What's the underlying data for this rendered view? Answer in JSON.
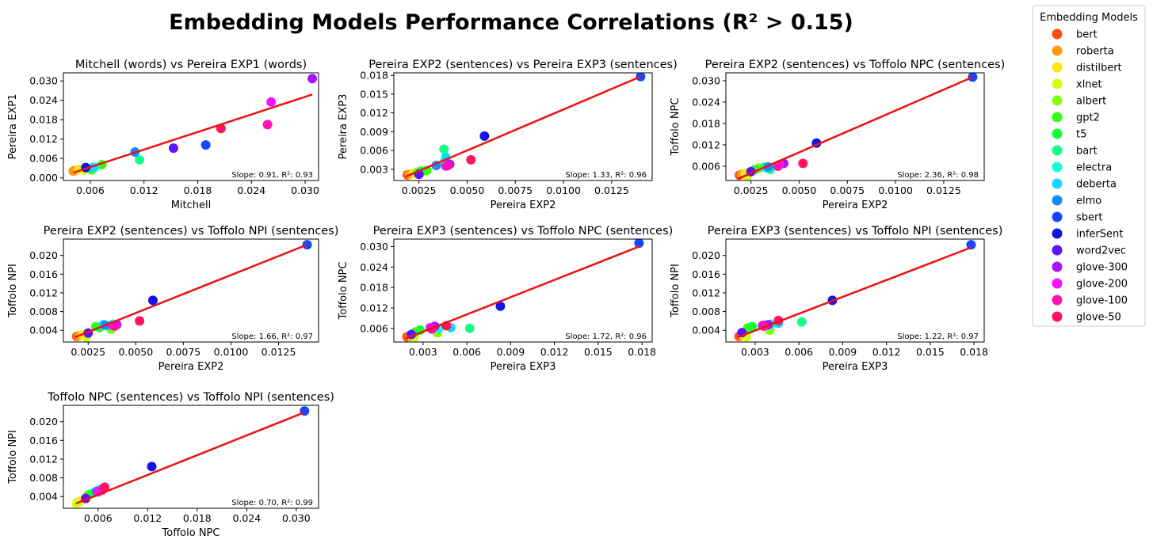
{
  "figure": {
    "title": "Embedding Models Performance Correlations (R² > 0.15)"
  },
  "legend": {
    "title": "Embedding Models",
    "placement": "outside-top-right",
    "entries": [
      {
        "name": "bert",
        "color": "#ff4d0f"
      },
      {
        "name": "roberta",
        "color": "#ff9a10"
      },
      {
        "name": "distilbert",
        "color": "#ffe512"
      },
      {
        "name": "xlnet",
        "color": "#d4ff14"
      },
      {
        "name": "albert",
        "color": "#7fff14"
      },
      {
        "name": "gpt2",
        "color": "#33ff14"
      },
      {
        "name": "t5",
        "color": "#14ff3a"
      },
      {
        "name": "bart",
        "color": "#14ff8a"
      },
      {
        "name": "electra",
        "color": "#14ffd8"
      },
      {
        "name": "deberta",
        "color": "#14d8ff"
      },
      {
        "name": "elmo",
        "color": "#148aff"
      },
      {
        "name": "sbert",
        "color": "#1447ff"
      },
      {
        "name": "inferSent",
        "color": "#1414e6"
      },
      {
        "name": "word2vec",
        "color": "#5c14ff"
      },
      {
        "name": "glove-300",
        "color": "#a814ff"
      },
      {
        "name": "glove-200",
        "color": "#f514ff"
      },
      {
        "name": "glove-100",
        "color": "#ff14b0"
      },
      {
        "name": "glove-50",
        "color": "#ff1460"
      }
    ]
  },
  "chart_data": [
    {
      "type": "scatter",
      "title": "Mitchell (words) vs Pereira EXP1 (words)",
      "xlabel": "Mitchell",
      "ylabel": "Pereira EXP1",
      "xlim": [
        0.003,
        0.0315
      ],
      "ylim": [
        -0.0008,
        0.0325
      ],
      "xticks": [
        "0.006",
        "0.012",
        "0.018",
        "0.024",
        "0.030"
      ],
      "yticks": [
        "0.000",
        "0.006",
        "0.012",
        "0.018",
        "0.024",
        "0.030"
      ],
      "fit": {
        "x": [
          0.0041,
          0.0308
        ],
        "y": [
          0.0016,
          0.0258
        ],
        "color": "#ee1111"
      },
      "stats": "Slope: 0.91, R²: 0.93",
      "points": [
        {
          "model": "bert",
          "x": 0.0042,
          "y": 0.0022
        },
        {
          "model": "roberta",
          "x": 0.0041,
          "y": 0.0021
        },
        {
          "model": "distilbert",
          "x": 0.0047,
          "y": 0.0026
        },
        {
          "model": "xlnet",
          "x": 0.0053,
          "y": 0.0024
        },
        {
          "model": "albert",
          "x": 0.0062,
          "y": 0.0024
        },
        {
          "model": "gpt2",
          "x": 0.0073,
          "y": 0.0041
        },
        {
          "model": "t5",
          "x": 0.006,
          "y": 0.0028
        },
        {
          "model": "bart",
          "x": 0.0115,
          "y": 0.0056
        },
        {
          "model": "electra",
          "x": 0.0065,
          "y": 0.0033
        },
        {
          "model": "deberta",
          "x": 0.0063,
          "y": 0.0032
        },
        {
          "model": "elmo",
          "x": 0.011,
          "y": 0.008
        },
        {
          "model": "sbert",
          "x": 0.0189,
          "y": 0.0102
        },
        {
          "model": "inferSent",
          "x": 0.0055,
          "y": 0.0032
        },
        {
          "model": "word2vec",
          "x": 0.0153,
          "y": 0.0092
        },
        {
          "model": "glove-300",
          "x": 0.0308,
          "y": 0.0307
        },
        {
          "model": "glove-200",
          "x": 0.0262,
          "y": 0.0235
        },
        {
          "model": "glove-100",
          "x": 0.0258,
          "y": 0.0165
        },
        {
          "model": "glove-50",
          "x": 0.0206,
          "y": 0.0153
        }
      ]
    },
    {
      "type": "scatter",
      "title": "Pereira EXP2 (sentences) vs Pereira EXP3 (sentences)",
      "xlabel": "Pereira EXP2",
      "ylabel": "Pereira EXP3",
      "xlim": [
        0.0012,
        0.0146
      ],
      "ylim": [
        0.0012,
        0.0184
      ],
      "xticks": [
        "0.0025",
        "0.0050",
        "0.0075",
        "0.0100",
        "0.0125"
      ],
      "yticks": [
        "0.003",
        "0.006",
        "0.009",
        "0.012",
        "0.015",
        "0.018"
      ],
      "fit": {
        "x": [
          0.0018,
          0.014
        ],
        "y": [
          0.0018,
          0.0178
        ],
        "color": "#ee1111"
      },
      "stats": "Slope: 1.33, R²: 0.96",
      "points": [
        {
          "model": "bert",
          "x": 0.0019,
          "y": 0.0021
        },
        {
          "model": "roberta",
          "x": 0.002,
          "y": 0.0022
        },
        {
          "model": "distilbert",
          "x": 0.0022,
          "y": 0.0023
        },
        {
          "model": "xlnet",
          "x": 0.0027,
          "y": 0.0026
        },
        {
          "model": "albert",
          "x": 0.0024,
          "y": 0.0025
        },
        {
          "model": "gpt2",
          "x": 0.0029,
          "y": 0.0028
        },
        {
          "model": "t5",
          "x": 0.0026,
          "y": 0.0027
        },
        {
          "model": "bart",
          "x": 0.0038,
          "y": 0.0062
        },
        {
          "model": "electra",
          "x": 0.0038,
          "y": 0.0041
        },
        {
          "model": "deberta",
          "x": 0.0039,
          "y": 0.0049
        },
        {
          "model": "elmo",
          "x": 0.0034,
          "y": 0.0036
        },
        {
          "model": "sbert",
          "x": 0.014,
          "y": 0.0178
        },
        {
          "model": "inferSent",
          "x": 0.0059,
          "y": 0.0083
        },
        {
          "model": "word2vec",
          "x": 0.0025,
          "y": 0.0022
        },
        {
          "model": "glove-300",
          "x": 0.0041,
          "y": 0.0038
        },
        {
          "model": "glove-200",
          "x": 0.0039,
          "y": 0.0035
        },
        {
          "model": "glove-100",
          "x": 0.004,
          "y": 0.0036
        },
        {
          "model": "glove-50",
          "x": 0.0052,
          "y": 0.0045
        }
      ]
    },
    {
      "type": "scatter",
      "title": "Pereira EXP2 (sentences) vs Toffolo NPC (sentences)",
      "xlabel": "Pereira EXP2",
      "ylabel": "Toffolo NPC",
      "xlim": [
        0.0012,
        0.0146
      ],
      "ylim": [
        0.002,
        0.0322
      ],
      "xticks": [
        "0.0025",
        "0.0050",
        "0.0075",
        "0.0100",
        "0.0125"
      ],
      "yticks": [
        "0.006",
        "0.012",
        "0.018",
        "0.024",
        "0.030"
      ],
      "fit": {
        "x": [
          0.0018,
          0.014
        ],
        "y": [
          0.0024,
          0.031
        ],
        "color": "#ee1111"
      },
      "stats": "Slope: 2.36, R²: 0.98",
      "points": [
        {
          "model": "bert",
          "x": 0.0019,
          "y": 0.0035
        },
        {
          "model": "roberta",
          "x": 0.002,
          "y": 0.0036
        },
        {
          "model": "distilbert",
          "x": 0.0022,
          "y": 0.004
        },
        {
          "model": "xlnet",
          "x": 0.0023,
          "y": 0.0033
        },
        {
          "model": "albert",
          "x": 0.0029,
          "y": 0.0055
        },
        {
          "model": "gpt2",
          "x": 0.0027,
          "y": 0.005
        },
        {
          "model": "t5",
          "x": 0.0032,
          "y": 0.0057
        },
        {
          "model": "bart",
          "x": 0.0035,
          "y": 0.0051
        },
        {
          "model": "electra",
          "x": 0.0033,
          "y": 0.0055
        },
        {
          "model": "deberta",
          "x": 0.0034,
          "y": 0.0057
        },
        {
          "model": "elmo",
          "x": 0.0034,
          "y": 0.0058
        },
        {
          "model": "sbert",
          "x": 0.014,
          "y": 0.031
        },
        {
          "model": "inferSent",
          "x": 0.0059,
          "y": 0.0125
        },
        {
          "model": "word2vec",
          "x": 0.0025,
          "y": 0.0045
        },
        {
          "model": "glove-300",
          "x": 0.0042,
          "y": 0.0068
        },
        {
          "model": "glove-200",
          "x": 0.004,
          "y": 0.0065
        },
        {
          "model": "glove-100",
          "x": 0.0039,
          "y": 0.006
        },
        {
          "model": "glove-50",
          "x": 0.0052,
          "y": 0.0068
        }
      ]
    },
    {
      "type": "scatter",
      "title": "Pereira EXP2 (sentences) vs Toffolo NPI (sentences)",
      "xlabel": "Pereira EXP2",
      "ylabel": "Toffolo NPI",
      "xlim": [
        0.0012,
        0.0146
      ],
      "ylim": [
        0.0015,
        0.0235
      ],
      "xticks": [
        "0.0025",
        "0.0050",
        "0.0075",
        "0.0100",
        "0.0125"
      ],
      "yticks": [
        "0.004",
        "0.008",
        "0.012",
        "0.016",
        "0.020"
      ],
      "fit": {
        "x": [
          0.0018,
          0.014
        ],
        "y": [
          0.0025,
          0.0223
        ],
        "color": "#ee1111"
      },
      "stats": "Slope: 1.66, R²: 0.97",
      "points": [
        {
          "model": "bert",
          "x": 0.0019,
          "y": 0.0027
        },
        {
          "model": "roberta",
          "x": 0.002,
          "y": 0.0028
        },
        {
          "model": "distilbert",
          "x": 0.0022,
          "y": 0.003
        },
        {
          "model": "xlnet",
          "x": 0.0024,
          "y": 0.0025
        },
        {
          "model": "albert",
          "x": 0.0037,
          "y": 0.0042
        },
        {
          "model": "gpt2",
          "x": 0.0029,
          "y": 0.0048
        },
        {
          "model": "t5",
          "x": 0.0031,
          "y": 0.0046
        },
        {
          "model": "bart",
          "x": 0.0036,
          "y": 0.005
        },
        {
          "model": "electra",
          "x": 0.0038,
          "y": 0.0053
        },
        {
          "model": "deberta",
          "x": 0.0033,
          "y": 0.0052
        },
        {
          "model": "elmo",
          "x": 0.0034,
          "y": 0.0051
        },
        {
          "model": "sbert",
          "x": 0.014,
          "y": 0.0223
        },
        {
          "model": "inferSent",
          "x": 0.0059,
          "y": 0.0104
        },
        {
          "model": "word2vec",
          "x": 0.0025,
          "y": 0.0034
        },
        {
          "model": "glove-300",
          "x": 0.004,
          "y": 0.0052
        },
        {
          "model": "glove-200",
          "x": 0.0038,
          "y": 0.005
        },
        {
          "model": "glove-100",
          "x": 0.0039,
          "y": 0.0049
        },
        {
          "model": "glove-50",
          "x": 0.0052,
          "y": 0.006
        }
      ]
    },
    {
      "type": "scatter",
      "title": "Pereira EXP3 (sentences) vs Toffolo NPC (sentences)",
      "xlabel": "Pereira EXP3",
      "ylabel": "Toffolo NPC",
      "xlim": [
        0.001,
        0.0187
      ],
      "ylim": [
        0.002,
        0.0322
      ],
      "xticks": [
        "0.003",
        "0.006",
        "0.009",
        "0.012",
        "0.015",
        "0.018"
      ],
      "yticks": [
        "0.006",
        "0.012",
        "0.018",
        "0.024",
        "0.030"
      ],
      "fit": {
        "x": [
          0.0018,
          0.0178
        ],
        "y": [
          0.003,
          0.03
        ],
        "color": "#ee1111"
      },
      "stats": "Slope: 1.72, R²: 0.96",
      "points": [
        {
          "model": "bert",
          "x": 0.0019,
          "y": 0.0035
        },
        {
          "model": "roberta",
          "x": 0.0021,
          "y": 0.0036
        },
        {
          "model": "distilbert",
          "x": 0.0022,
          "y": 0.0038
        },
        {
          "model": "xlnet",
          "x": 0.0024,
          "y": 0.0034
        },
        {
          "model": "albert",
          "x": 0.004,
          "y": 0.0047
        },
        {
          "model": "gpt2",
          "x": 0.0025,
          "y": 0.005
        },
        {
          "model": "t5",
          "x": 0.0028,
          "y": 0.0055
        },
        {
          "model": "bart",
          "x": 0.0062,
          "y": 0.006
        },
        {
          "model": "electra",
          "x": 0.0041,
          "y": 0.006
        },
        {
          "model": "deberta",
          "x": 0.0049,
          "y": 0.0062
        },
        {
          "model": "elmo",
          "x": 0.0036,
          "y": 0.0058
        },
        {
          "model": "sbert",
          "x": 0.0178,
          "y": 0.031
        },
        {
          "model": "inferSent",
          "x": 0.0083,
          "y": 0.0125
        },
        {
          "model": "word2vec",
          "x": 0.0022,
          "y": 0.0042
        },
        {
          "model": "glove-300",
          "x": 0.0038,
          "y": 0.0066
        },
        {
          "model": "glove-200",
          "x": 0.0035,
          "y": 0.0062
        },
        {
          "model": "glove-100",
          "x": 0.0036,
          "y": 0.0058
        },
        {
          "model": "glove-50",
          "x": 0.0046,
          "y": 0.0068
        }
      ]
    },
    {
      "type": "scatter",
      "title": "Pereira EXP3 (sentences) vs Toffolo NPI (sentences)",
      "xlabel": "Pereira EXP3",
      "ylabel": "Toffolo NPI",
      "xlim": [
        0.001,
        0.0187
      ],
      "ylim": [
        0.0015,
        0.0235
      ],
      "xticks": [
        "0.003",
        "0.006",
        "0.009",
        "0.012",
        "0.015",
        "0.018"
      ],
      "yticks": [
        "0.004",
        "0.008",
        "0.012",
        "0.016",
        "0.020"
      ],
      "fit": {
        "x": [
          0.0018,
          0.0178
        ],
        "y": [
          0.0025,
          0.0217
        ],
        "color": "#ee1111"
      },
      "stats": "Slope: 1.22, R²: 0.97",
      "points": [
        {
          "model": "bert",
          "x": 0.0019,
          "y": 0.0027
        },
        {
          "model": "roberta",
          "x": 0.0021,
          "y": 0.0028
        },
        {
          "model": "distilbert",
          "x": 0.0022,
          "y": 0.003
        },
        {
          "model": "xlnet",
          "x": 0.0024,
          "y": 0.0026
        },
        {
          "model": "albert",
          "x": 0.004,
          "y": 0.004
        },
        {
          "model": "gpt2",
          "x": 0.0025,
          "y": 0.0045
        },
        {
          "model": "t5",
          "x": 0.0028,
          "y": 0.0048
        },
        {
          "model": "bart",
          "x": 0.0062,
          "y": 0.0058
        },
        {
          "model": "electra",
          "x": 0.0041,
          "y": 0.0053
        },
        {
          "model": "deberta",
          "x": 0.0046,
          "y": 0.0055
        },
        {
          "model": "elmo",
          "x": 0.0036,
          "y": 0.0051
        },
        {
          "model": "sbert",
          "x": 0.0178,
          "y": 0.0223
        },
        {
          "model": "inferSent",
          "x": 0.0083,
          "y": 0.0104
        },
        {
          "model": "word2vec",
          "x": 0.0021,
          "y": 0.0035
        },
        {
          "model": "glove-300",
          "x": 0.0039,
          "y": 0.0052
        },
        {
          "model": "glove-200",
          "x": 0.0035,
          "y": 0.005
        },
        {
          "model": "glove-100",
          "x": 0.0036,
          "y": 0.0049
        },
        {
          "model": "glove-50",
          "x": 0.0046,
          "y": 0.0061
        }
      ]
    },
    {
      "type": "scatter",
      "title": "Toffolo NPC (sentences) vs Toffolo NPI (sentences)",
      "xlabel": "Toffolo NPC",
      "ylabel": "Toffolo NPI",
      "xlim": [
        0.0018,
        0.0327
      ],
      "ylim": [
        0.0015,
        0.0235
      ],
      "xticks": [
        "0.006",
        "0.012",
        "0.018",
        "0.024",
        "0.030"
      ],
      "yticks": [
        "0.004",
        "0.008",
        "0.012",
        "0.016",
        "0.020"
      ],
      "fit": {
        "x": [
          0.0033,
          0.031
        ],
        "y": [
          0.0025,
          0.022
        ],
        "color": "#ee1111"
      },
      "stats": "Slope: 0.70, R²: 0.99",
      "points": [
        {
          "model": "bert",
          "x": 0.0035,
          "y": 0.0027
        },
        {
          "model": "roberta",
          "x": 0.0036,
          "y": 0.0028
        },
        {
          "model": "distilbert",
          "x": 0.0038,
          "y": 0.003
        },
        {
          "model": "xlnet",
          "x": 0.0034,
          "y": 0.0025
        },
        {
          "model": "albert",
          "x": 0.0047,
          "y": 0.0042
        },
        {
          "model": "gpt2",
          "x": 0.005,
          "y": 0.0045
        },
        {
          "model": "t5",
          "x": 0.0055,
          "y": 0.0048
        },
        {
          "model": "bart",
          "x": 0.0058,
          "y": 0.0051
        },
        {
          "model": "electra",
          "x": 0.006,
          "y": 0.0053
        },
        {
          "model": "deberta",
          "x": 0.0062,
          "y": 0.0055
        },
        {
          "model": "elmo",
          "x": 0.0058,
          "y": 0.0051
        },
        {
          "model": "sbert",
          "x": 0.031,
          "y": 0.0223
        },
        {
          "model": "inferSent",
          "x": 0.0125,
          "y": 0.0104
        },
        {
          "model": "word2vec",
          "x": 0.0045,
          "y": 0.0036
        },
        {
          "model": "glove-300",
          "x": 0.0066,
          "y": 0.0056
        },
        {
          "model": "glove-200",
          "x": 0.006,
          "y": 0.005
        },
        {
          "model": "glove-100",
          "x": 0.0065,
          "y": 0.0054
        },
        {
          "model": "glove-50",
          "x": 0.0068,
          "y": 0.006
        }
      ]
    }
  ]
}
